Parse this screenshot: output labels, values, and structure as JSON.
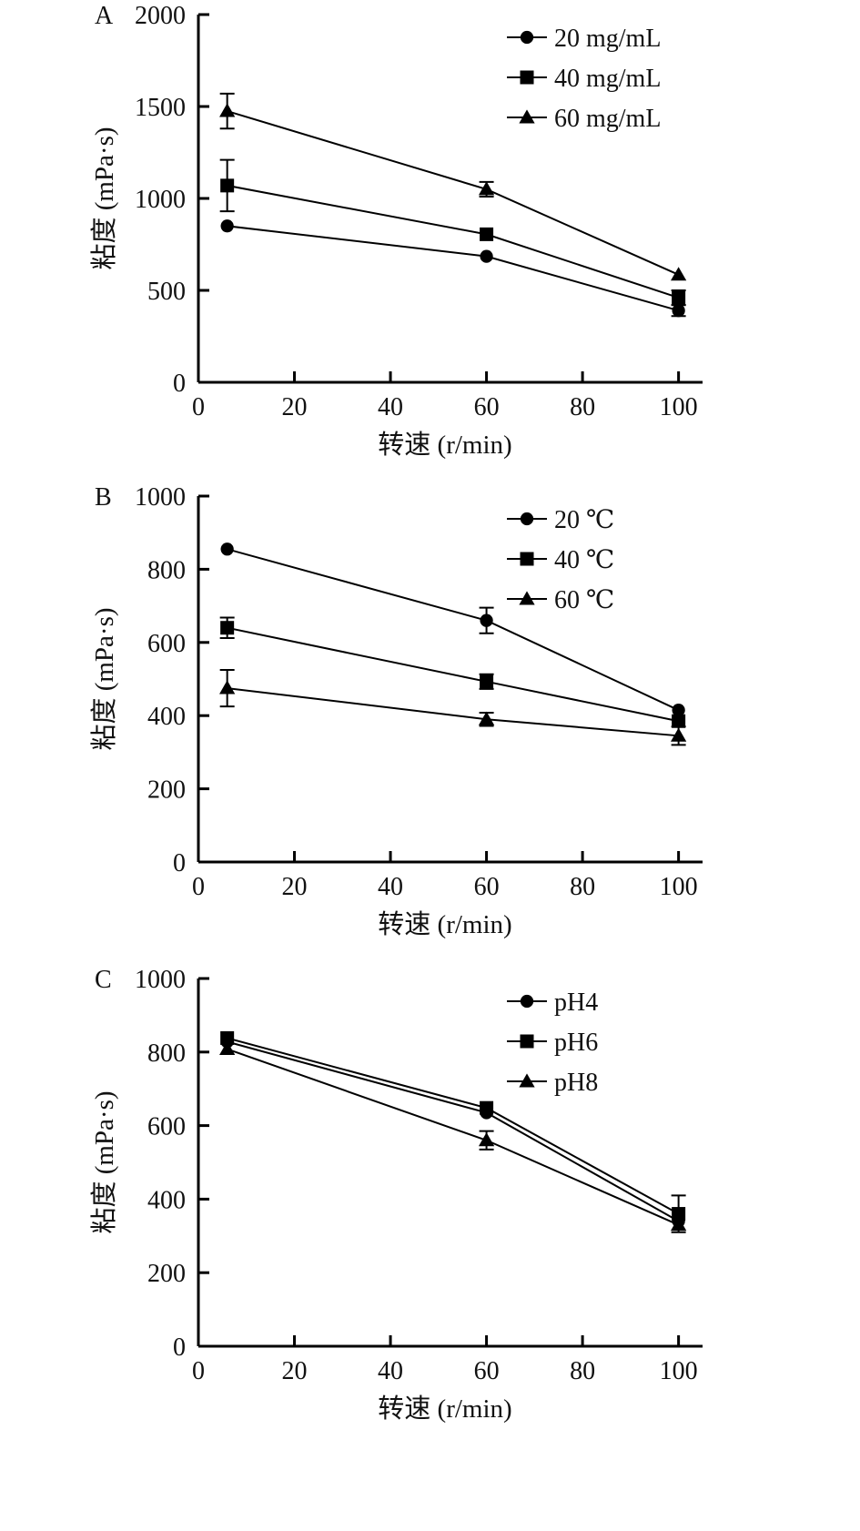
{
  "chart_data": [
    {
      "type": "line",
      "panel_label": "A",
      "xlabel": "转速 (r/min)",
      "ylabel": "粘度 (mPa·s)",
      "xlim": [
        0,
        105
      ],
      "ylim": [
        0,
        2000
      ],
      "xticks": [
        0,
        20,
        40,
        60,
        80,
        100
      ],
      "yticks": [
        0,
        500,
        1000,
        1500,
        2000
      ],
      "legend_position": "top-right",
      "x": [
        6,
        60,
        100
      ],
      "series": [
        {
          "name": "20 mg/mL",
          "marker": "circle",
          "values": [
            850,
            685,
            390
          ],
          "errors": [
            0,
            0,
            30
          ]
        },
        {
          "name": "40 mg/mL",
          "marker": "square",
          "values": [
            1070,
            805,
            460
          ],
          "errors": [
            140,
            0,
            40
          ]
        },
        {
          "name": "60 mg/mL",
          "marker": "triangle",
          "values": [
            1475,
            1050,
            585
          ],
          "errors": [
            95,
            40,
            0
          ]
        }
      ]
    },
    {
      "type": "line",
      "panel_label": "B",
      "xlabel": "转速 (r/min)",
      "ylabel": "粘度 (mPa·s)",
      "xlim": [
        0,
        105
      ],
      "ylim": [
        0,
        1000
      ],
      "xticks": [
        0,
        20,
        40,
        60,
        80,
        100
      ],
      "yticks": [
        0,
        200,
        400,
        600,
        800,
        1000
      ],
      "legend_position": "top-right",
      "x": [
        6,
        60,
        100
      ],
      "series": [
        {
          "name": "20 ℃",
          "marker": "circle",
          "values": [
            855,
            660,
            415
          ],
          "errors": [
            0,
            35,
            0
          ]
        },
        {
          "name": "40 ℃",
          "marker": "square",
          "values": [
            640,
            493,
            385
          ],
          "errors": [
            28,
            20,
            0
          ]
        },
        {
          "name": "60 ℃",
          "marker": "triangle",
          "values": [
            475,
            390,
            345
          ],
          "errors": [
            50,
            18,
            25
          ]
        }
      ]
    },
    {
      "type": "line",
      "panel_label": "C",
      "xlabel": "转速 (r/min)",
      "ylabel": "粘度 (mPa·s)",
      "xlim": [
        0,
        105
      ],
      "ylim": [
        0,
        1000
      ],
      "xticks": [
        0,
        20,
        40,
        60,
        80,
        100
      ],
      "yticks": [
        0,
        200,
        400,
        600,
        800,
        1000
      ],
      "legend_position": "top-right",
      "x": [
        6,
        60,
        100
      ],
      "series": [
        {
          "name": "pH4",
          "marker": "circle",
          "values": [
            828,
            635,
            340
          ],
          "errors": [
            0,
            0,
            0
          ]
        },
        {
          "name": "pH6",
          "marker": "square",
          "values": [
            838,
            648,
            360
          ],
          "errors": [
            0,
            0,
            50
          ]
        },
        {
          "name": "pH8",
          "marker": "triangle",
          "values": [
            808,
            560,
            330
          ],
          "errors": [
            0,
            25,
            0
          ]
        }
      ]
    }
  ]
}
